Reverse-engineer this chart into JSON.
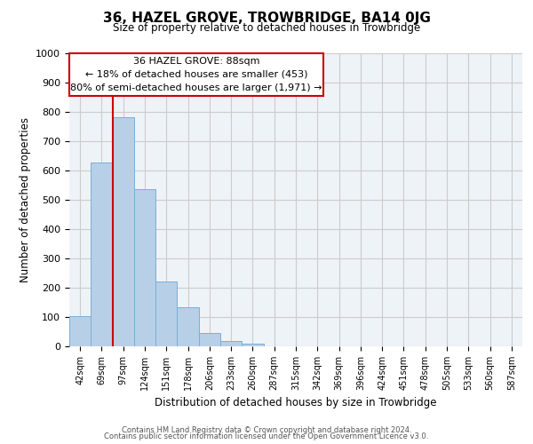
{
  "title": "36, HAZEL GROVE, TROWBRIDGE, BA14 0JG",
  "subtitle": "Size of property relative to detached houses in Trowbridge",
  "xlabel": "Distribution of detached houses by size in Trowbridge",
  "ylabel": "Number of detached properties",
  "bar_labels": [
    "42sqm",
    "69sqm",
    "97sqm",
    "124sqm",
    "151sqm",
    "178sqm",
    "206sqm",
    "233sqm",
    "260sqm",
    "287sqm",
    "315sqm",
    "342sqm",
    "369sqm",
    "396sqm",
    "424sqm",
    "451sqm",
    "478sqm",
    "505sqm",
    "533sqm",
    "560sqm",
    "587sqm"
  ],
  "bar_values": [
    103,
    627,
    782,
    537,
    220,
    133,
    44,
    17,
    8,
    0,
    0,
    0,
    0,
    0,
    0,
    0,
    0,
    0,
    0,
    0,
    0
  ],
  "bar_color": "#b8cfe8",
  "bar_edge_color": "#7aafd4",
  "vline_color": "#cc0000",
  "ylim": [
    0,
    1000
  ],
  "yticks": [
    0,
    100,
    200,
    300,
    400,
    500,
    600,
    700,
    800,
    900,
    1000
  ],
  "annotation_line1": "36 HAZEL GROVE: 88sqm",
  "annotation_line2": "← 18% of detached houses are smaller (453)",
  "annotation_line3": "80% of semi-detached houses are larger (1,971) →",
  "footer_line1": "Contains HM Land Registry data © Crown copyright and database right 2024.",
  "footer_line2": "Contains public sector information licensed under the Open Government Licence v3.0.",
  "background_color": "#ffffff",
  "grid_color": "#cccccc",
  "plot_bg_color": "#eef3f8"
}
